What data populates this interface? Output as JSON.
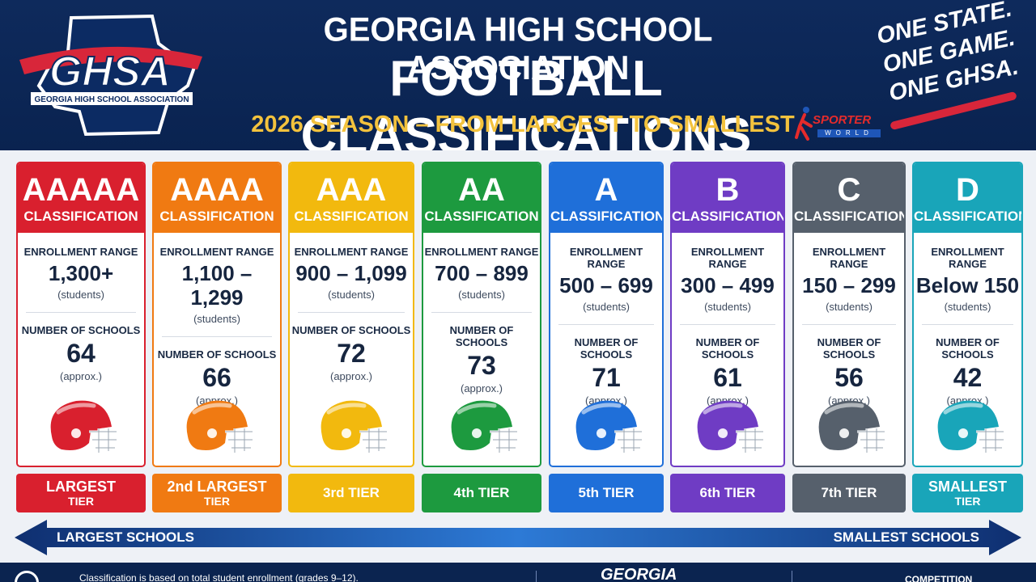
{
  "header": {
    "logo_text": "GHSA",
    "logo_subtext": "GEORGIA HIGH SCHOOL ASSOCIATION",
    "title_line1": "GEORGIA HIGH SCHOOL ASSOCIATION",
    "title_line2": "FOOTBALL CLASSIFICATIONS",
    "subtitle": "2026 SEASON – FROM LARGEST TO SMALLEST",
    "slogan_line1": "ONE STATE.",
    "slogan_line2": "ONE GAME.",
    "slogan_line3": "ONE GHSA.",
    "sporter_brand": "SPORTER",
    "sporter_sub": "WORLD"
  },
  "labels": {
    "enrollment": "ENROLLMENT RANGE",
    "students": "(students)",
    "schools": "NUMBER OF SCHOOLS",
    "approx": "(approx.)",
    "classification": "CLASSIFICATION"
  },
  "classes": [
    {
      "letters": "AAAAA",
      "range": "1,300+",
      "schools": "64",
      "tier_line1": "LARGEST",
      "tier_line2": "TIER",
      "color": "#d9202e",
      "dark": "#c71a26"
    },
    {
      "letters": "AAAA",
      "range": "1,100 – 1,299",
      "schools": "66",
      "tier_line1": "2nd LARGEST",
      "tier_line2": "TIER",
      "color": "#f07a12",
      "dark": "#e56d0b"
    },
    {
      "letters": "AAA",
      "range": "900 – 1,099",
      "schools": "72",
      "tier_line1": "3rd TIER",
      "tier_line2": "",
      "color": "#f2b90e",
      "dark": "#eab10a"
    },
    {
      "letters": "AA",
      "range": "700 – 899",
      "schools": "73",
      "tier_line1": "4th TIER",
      "tier_line2": "",
      "color": "#1d9a3f",
      "dark": "#178d37"
    },
    {
      "letters": "A",
      "range": "500 – 699",
      "schools": "71",
      "tier_line1": "5th TIER",
      "tier_line2": "",
      "color": "#1f6fd9",
      "dark": "#1a63c6"
    },
    {
      "letters": "B",
      "range": "300 – 499",
      "schools": "61",
      "tier_line1": "6th TIER",
      "tier_line2": "",
      "color": "#6f3cc4",
      "dark": "#6535b5"
    },
    {
      "letters": "C",
      "range": "150 – 299",
      "schools": "56",
      "tier_line1": "7th TIER",
      "tier_line2": "",
      "color": "#56606c",
      "dark": "#4c5560"
    },
    {
      "letters": "D",
      "range": "Below 150",
      "schools": "42",
      "tier_line1": "SMALLEST",
      "tier_line2": "TIER",
      "color": "#19a5b9",
      "dark": "#1598ab"
    }
  ],
  "arrow": {
    "left_label": "LARGEST SCHOOLS",
    "right_label": "SMALLEST SCHOOLS"
  },
  "footer": {
    "note": "Classification is based on total student enrollment (grades 9–12).",
    "georgia": "GEORGIA",
    "competition": "COMPETITION"
  }
}
